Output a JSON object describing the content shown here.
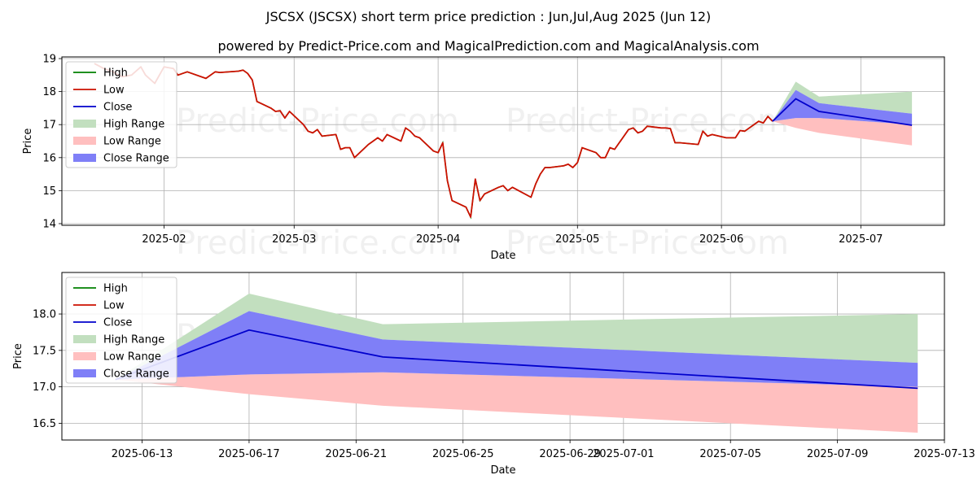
{
  "title": "JSCSX (JSCSX) short term price prediction : Jun,Jul,Aug 2025 (Jun 12)",
  "subtitle": "powered by Predict-Price.com and MagicalPrediction.com and MagicalAnalysis.com",
  "watermark": "Predict-Price.com",
  "colors": {
    "high": "#008000",
    "low": "#cc1100",
    "close": "#0000cc",
    "high_range": "#c2dfbf",
    "low_range": "#ffbfbf",
    "close_range": "#7f7ff7",
    "grid": "#b0b0b0",
    "axis": "#000000"
  },
  "chart_data": [
    {
      "type": "line",
      "name": "overview",
      "xlabel": "Date",
      "ylabel": "Price",
      "xlim": [
        "2025-01-10",
        "2025-07-19"
      ],
      "ylim": [
        13.95,
        19.05
      ],
      "x_ticks": [
        {
          "date": "2025-02-01",
          "label": "2025-02"
        },
        {
          "date": "2025-03-01",
          "label": "2025-03"
        },
        {
          "date": "2025-04-01",
          "label": "2025-04"
        },
        {
          "date": "2025-05-01",
          "label": "2025-05"
        },
        {
          "date": "2025-06-01",
          "label": "2025-06"
        },
        {
          "date": "2025-07-01",
          "label": "2025-07"
        }
      ],
      "y_ticks": [
        14,
        15,
        16,
        17,
        18,
        19
      ],
      "legend": [
        "High",
        "Low",
        "Close",
        "High Range",
        "Low Range",
        "Close Range"
      ],
      "legend_position": "upper-left",
      "history": {
        "dates": [
          "2025-01-17",
          "2025-01-19",
          "2025-01-21",
          "2025-01-23",
          "2025-01-25",
          "2025-01-27",
          "2025-01-28",
          "2025-01-30",
          "2025-02-01",
          "2025-02-03",
          "2025-02-04",
          "2025-02-05",
          "2025-02-06",
          "2025-02-10",
          "2025-02-12",
          "2025-02-13",
          "2025-02-17",
          "2025-02-18",
          "2025-02-19",
          "2025-02-20",
          "2025-02-21",
          "2025-02-24",
          "2025-02-25",
          "2025-02-26",
          "2025-02-27",
          "2025-02-28",
          "2025-03-03",
          "2025-03-04",
          "2025-03-05",
          "2025-03-06",
          "2025-03-07",
          "2025-03-10",
          "2025-03-11",
          "2025-03-12",
          "2025-03-13",
          "2025-03-14",
          "2025-03-17",
          "2025-03-18",
          "2025-03-19",
          "2025-03-20",
          "2025-03-21",
          "2025-03-24",
          "2025-03-25",
          "2025-03-26",
          "2025-03-27",
          "2025-03-28",
          "2025-03-31",
          "2025-04-01",
          "2025-04-02",
          "2025-04-03",
          "2025-04-04",
          "2025-04-07",
          "2025-04-08",
          "2025-04-09",
          "2025-04-10",
          "2025-04-11",
          "2025-04-14",
          "2025-04-15",
          "2025-04-16",
          "2025-04-17",
          "2025-04-21",
          "2025-04-22",
          "2025-04-23",
          "2025-04-24",
          "2025-04-25",
          "2025-04-28",
          "2025-04-29",
          "2025-04-30",
          "2025-05-01",
          "2025-05-02",
          "2025-05-05",
          "2025-05-06",
          "2025-05-07",
          "2025-05-08",
          "2025-05-09",
          "2025-05-12",
          "2025-05-13",
          "2025-05-14",
          "2025-05-15",
          "2025-05-16",
          "2025-05-19",
          "2025-05-20",
          "2025-05-21",
          "2025-05-22",
          "2025-05-23",
          "2025-05-27",
          "2025-05-28",
          "2025-05-29",
          "2025-05-30",
          "2025-06-02",
          "2025-06-03",
          "2025-06-04",
          "2025-06-05",
          "2025-06-06",
          "2025-06-09",
          "2025-06-10",
          "2025-06-11",
          "2025-06-12"
        ],
        "values": [
          18.85,
          18.7,
          18.6,
          18.45,
          18.5,
          18.75,
          18.5,
          18.25,
          18.75,
          18.7,
          18.5,
          18.55,
          18.6,
          18.4,
          18.6,
          18.58,
          18.62,
          18.65,
          18.55,
          18.35,
          17.7,
          17.5,
          17.4,
          17.42,
          17.2,
          17.4,
          17.0,
          16.8,
          16.75,
          16.85,
          16.65,
          16.7,
          16.25,
          16.3,
          16.3,
          16.0,
          16.4,
          16.5,
          16.6,
          16.5,
          16.7,
          16.5,
          16.9,
          16.8,
          16.65,
          16.6,
          16.2,
          16.15,
          16.45,
          15.3,
          14.7,
          14.5,
          14.2,
          15.35,
          14.7,
          14.9,
          15.1,
          15.15,
          15.0,
          15.1,
          14.8,
          15.2,
          15.5,
          15.7,
          15.7,
          15.75,
          15.8,
          15.7,
          15.85,
          16.3,
          16.15,
          16.0,
          16.0,
          16.3,
          16.25,
          16.85,
          16.9,
          16.75,
          16.8,
          16.95,
          16.9,
          16.9,
          16.88,
          16.45,
          16.45,
          16.4,
          16.8,
          16.65,
          16.7,
          16.6,
          16.6,
          16.6,
          16.82,
          16.8,
          17.1,
          17.05,
          17.25,
          17.1
        ]
      },
      "forecast": {
        "dates": [
          "2025-06-12",
          "2025-06-17",
          "2025-06-22",
          "2025-07-12"
        ],
        "high": [
          17.1,
          18.3,
          17.85,
          18.0
        ],
        "high_range_upper": [
          17.1,
          18.3,
          17.85,
          18.0
        ],
        "close_range_upper": [
          17.1,
          18.05,
          17.65,
          17.33
        ],
        "close": [
          17.1,
          17.78,
          17.4,
          16.98
        ],
        "close_range_lower": [
          17.1,
          17.2,
          17.2,
          17.0
        ],
        "low_range_lower": [
          17.1,
          16.9,
          16.75,
          16.37
        ]
      }
    },
    {
      "type": "line",
      "name": "forecast-detail",
      "xlabel": "Date",
      "ylabel": "Price",
      "xlim": [
        "2025-06-10",
        "2025-07-13"
      ],
      "ylim": [
        16.27,
        18.57
      ],
      "x_ticks": [
        {
          "date": "2025-06-13",
          "label": "2025-06-13"
        },
        {
          "date": "2025-06-17",
          "label": "2025-06-17"
        },
        {
          "date": "2025-06-21",
          "label": "2025-06-21"
        },
        {
          "date": "2025-06-25",
          "label": "2025-06-25"
        },
        {
          "date": "2025-06-29",
          "label": "2025-06-29"
        },
        {
          "date": "2025-07-01",
          "label": "2025-07-01"
        },
        {
          "date": "2025-07-05",
          "label": "2025-07-05"
        },
        {
          "date": "2025-07-09",
          "label": "2025-07-09"
        },
        {
          "date": "2025-07-13",
          "label": "2025-07-13"
        }
      ],
      "y_ticks": [
        16.5,
        17.0,
        17.5,
        18.0
      ],
      "legend": [
        "High",
        "Low",
        "Close",
        "High Range",
        "Low Range",
        "Close Range"
      ],
      "legend_position": "upper-left",
      "forecast": {
        "dates": [
          "2025-06-12",
          "2025-06-17",
          "2025-06-22",
          "2025-07-12"
        ],
        "high_range_upper": [
          17.1,
          18.28,
          17.86,
          18.0
        ],
        "close_range_upper": [
          17.1,
          18.04,
          17.65,
          17.33
        ],
        "close": [
          17.1,
          17.78,
          17.41,
          16.98
        ],
        "close_range_lower": [
          17.1,
          17.17,
          17.2,
          17.0
        ],
        "low_range_lower": [
          17.1,
          16.9,
          16.74,
          16.37
        ]
      }
    }
  ]
}
